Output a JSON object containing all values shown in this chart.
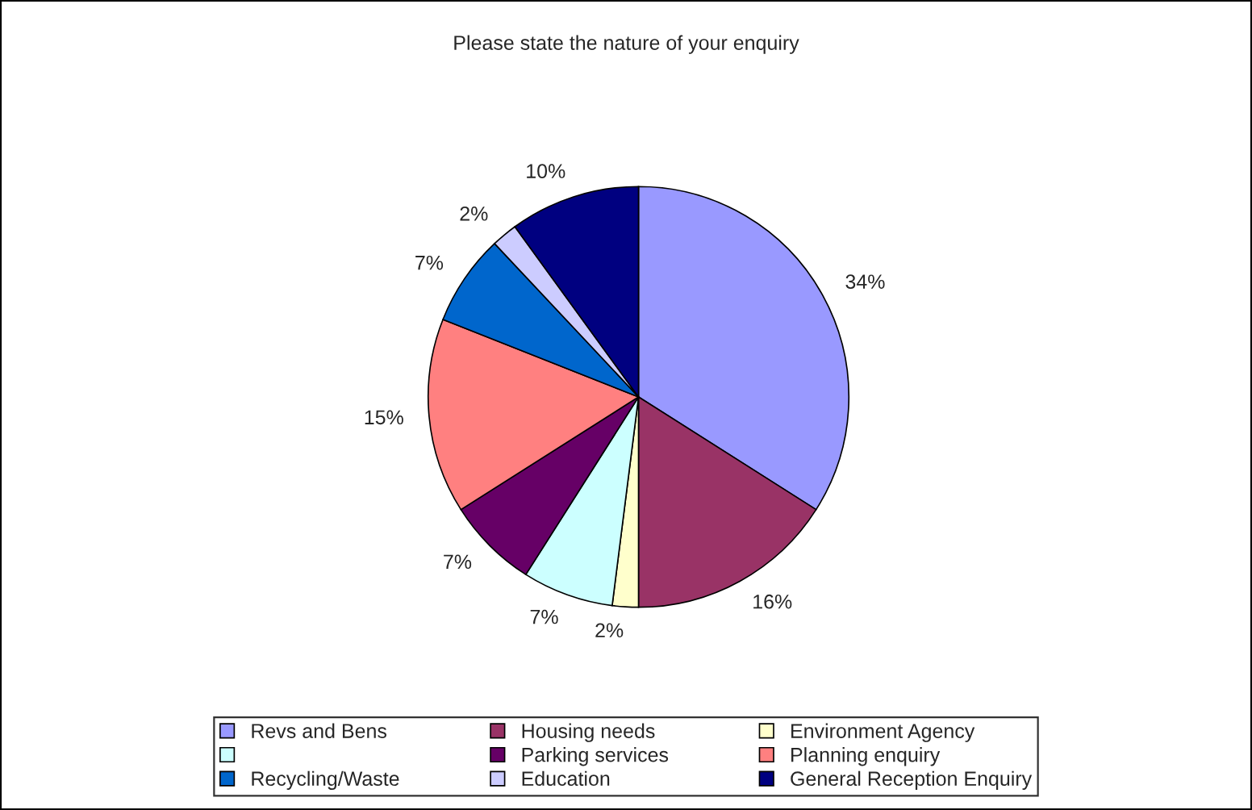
{
  "chart_data": {
    "type": "pie",
    "title": "Please state the nature of your enquiry",
    "categories": [
      "Revs and Bens",
      "Housing needs",
      "Environment Agency",
      null,
      "Parking services",
      "Planning enquiry",
      "Recycling/Waste",
      "Education",
      "General Reception Enquiry"
    ],
    "values": [
      34,
      16,
      2,
      7,
      7,
      15,
      7,
      2,
      10
    ],
    "value_labels": [
      "34%",
      "16%",
      "2%",
      "7%",
      "7%",
      "15%",
      "7%",
      "2%",
      "10%"
    ],
    "colors": [
      "#9999ff",
      "#993366",
      "#ffffcc",
      "#ccffff",
      "#660066",
      "#ff8080",
      "#0066cc",
      "#ccccff",
      "#000080"
    ],
    "legend": "bottom"
  }
}
